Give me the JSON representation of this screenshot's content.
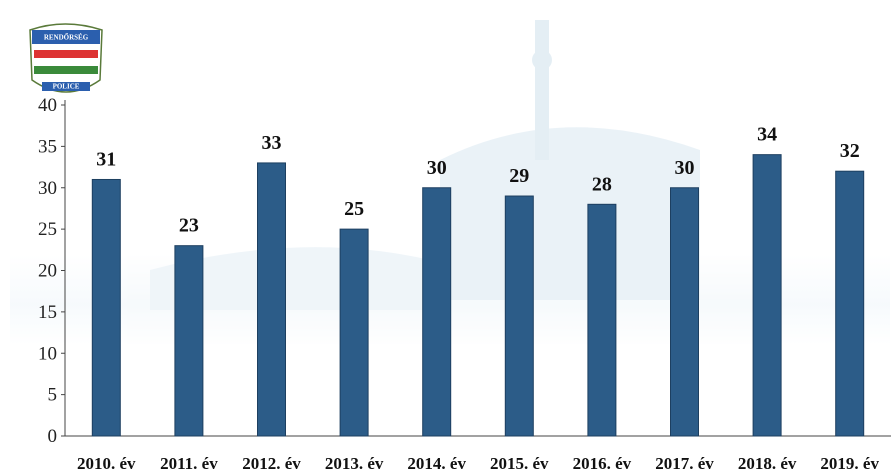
{
  "logo": {
    "top": "RENDŐRSÉG",
    "bottom": "POLICE"
  },
  "chart_data": {
    "type": "bar",
    "categories": [
      "2010. év",
      "2011. év",
      "2012. év",
      "2013. év",
      "2014. év",
      "2015. év",
      "2016. év",
      "2017. év",
      "2018. év",
      "2019. év"
    ],
    "values": [
      31,
      23,
      33,
      25,
      30,
      29,
      28,
      30,
      34,
      32
    ],
    "color": "#2c5c88",
    "ylim": [
      0,
      40
    ],
    "yticks": [
      0,
      5,
      10,
      15,
      20,
      25,
      30,
      35,
      40
    ],
    "grid": false
  }
}
